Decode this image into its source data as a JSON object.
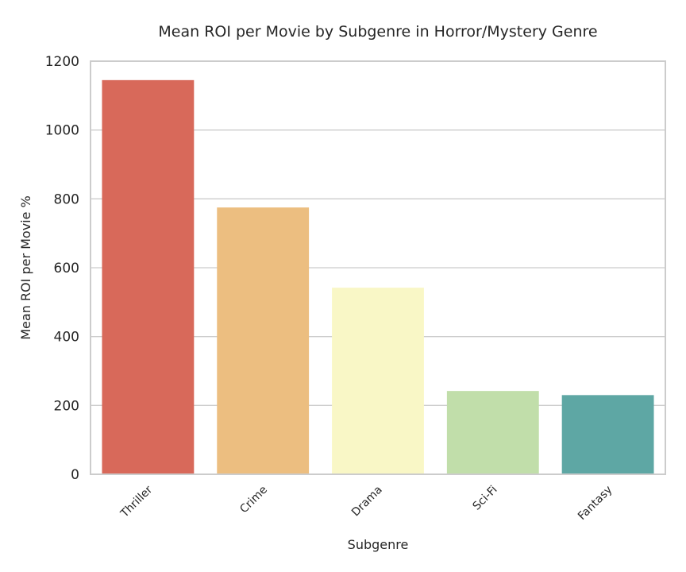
{
  "chart_data": {
    "type": "bar",
    "title": "Mean ROI per Movie by Subgenre in Horror/Mystery Genre",
    "xlabel": "Subgenre",
    "ylabel": "Mean ROI per Movie %",
    "categories": [
      "Thriller",
      "Crime",
      "Drama",
      "Sci-Fi",
      "Fantasy"
    ],
    "values": [
      1145,
      775,
      542,
      242,
      230
    ],
    "colors": [
      "#d8695a",
      "#ecbe80",
      "#f9f7c6",
      "#c1deaa",
      "#5ea7a4"
    ],
    "ylim": [
      0,
      1200
    ],
    "yticks": [
      0,
      200,
      400,
      600,
      800,
      1000,
      1200
    ],
    "grid": "horizontal",
    "legend": "none"
  }
}
